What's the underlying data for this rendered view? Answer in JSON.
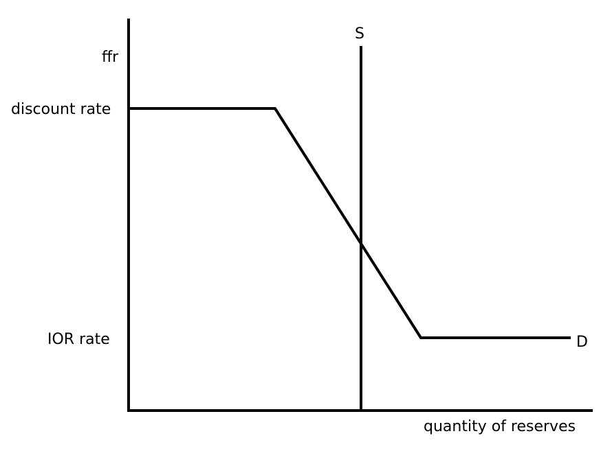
{
  "diagram": {
    "y_axis_label": "ffr",
    "x_axis_label": "quantity of reserves",
    "upper_rate_label": "discount rate",
    "lower_rate_label": "IOR rate",
    "supply_label": "S",
    "demand_label": "D",
    "line_color": "#000000",
    "background": "#ffffff"
  }
}
